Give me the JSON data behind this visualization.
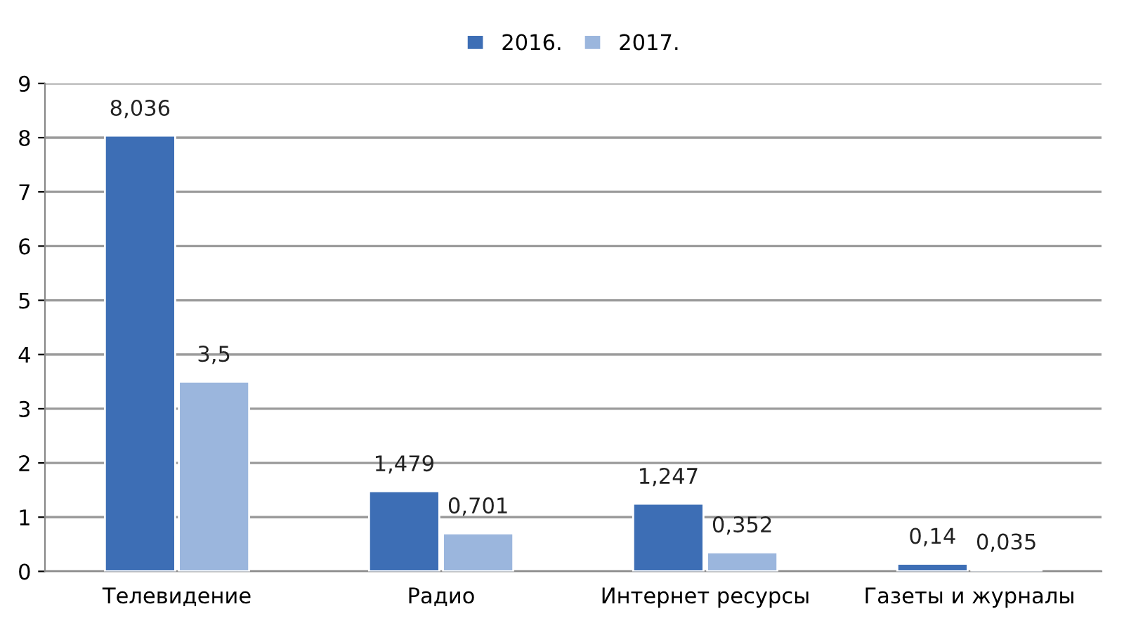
{
  "chart_data": {
    "type": "bar",
    "categories": [
      "Телевидение",
      "Радио",
      "Интернет ресурсы",
      "Газеты и журналы"
    ],
    "series": [
      {
        "name": "2016.",
        "color": "#3d6eb5",
        "values": [
          8.036,
          1.479,
          1.247,
          0.14
        ],
        "value_labels": [
          "8,036",
          "1,479",
          "1,247",
          "0,14"
        ]
      },
      {
        "name": "2017.",
        "color": "#9bb6dd",
        "values": [
          3.5,
          0.701,
          0.352,
          0.035
        ],
        "value_labels": [
          "3,5",
          "0,701",
          "0,352",
          "0,035"
        ]
      }
    ],
    "ylim": [
      0,
      9
    ],
    "yticks": [
      0,
      1,
      2,
      3,
      4,
      5,
      6,
      7,
      8,
      9
    ],
    "grid": "y",
    "legend": "top"
  }
}
